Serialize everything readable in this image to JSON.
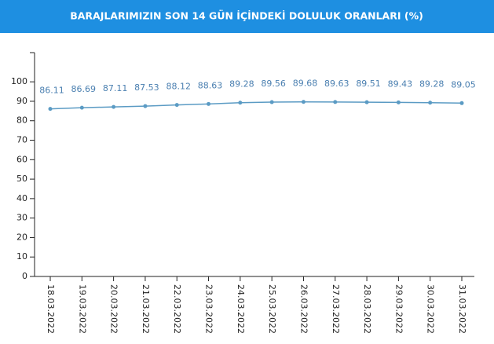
{
  "chart_data": {
    "type": "line",
    "title": "BARAJLARIMIZIN SON 14 GÜN İÇİNDEKİ DOLULUK ORANLARI (%)",
    "categories": [
      "18.03.2022",
      "19.03.2022",
      "20.03.2022",
      "21.03.2022",
      "22.03.2022",
      "23.03.2022",
      "24.03.2022",
      "25.03.2022",
      "26.03.2022",
      "27.03.2022",
      "28.03.2022",
      "29.03.2022",
      "30.03.2022",
      "31.03.2022"
    ],
    "values": [
      86.11,
      86.69,
      87.11,
      87.53,
      88.12,
      88.63,
      89.28,
      89.56,
      89.68,
      89.63,
      89.51,
      89.43,
      89.28,
      89.05
    ],
    "color": "#5b9bc4",
    "ylim": [
      0,
      115
    ],
    "yticks": [
      0,
      10,
      20,
      30,
      40,
      50,
      60,
      70,
      80,
      90,
      100
    ]
  }
}
